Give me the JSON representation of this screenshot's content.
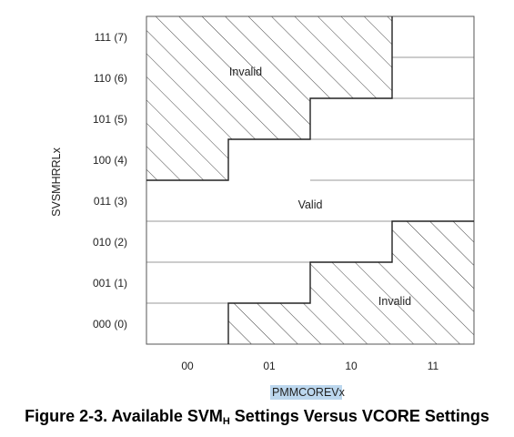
{
  "diagram": {
    "y_axis": {
      "title": "SVSMHRRLx",
      "ticks": [
        "111 (7)",
        "110 (6)",
        "101 (5)",
        "100 (4)",
        "011 (3)",
        "010 (2)",
        "001 (1)",
        "000 (0)"
      ]
    },
    "x_axis": {
      "title_highlight": "PMMCOREV",
      "title_suffix": "x",
      "ticks": [
        "00",
        "01",
        "10",
        "11"
      ]
    },
    "regions": {
      "invalid_upper": "Invalid",
      "valid": "Valid",
      "invalid_lower": "Invalid"
    },
    "colors": {
      "highlight": "#bcd7ee",
      "line": "#333333",
      "grid": "#9a9a9a"
    }
  },
  "caption": {
    "prefix": "Figure 2-3. Available SVM",
    "subscript": "H",
    "suffix": " Settings Versus VCORE Settings"
  }
}
